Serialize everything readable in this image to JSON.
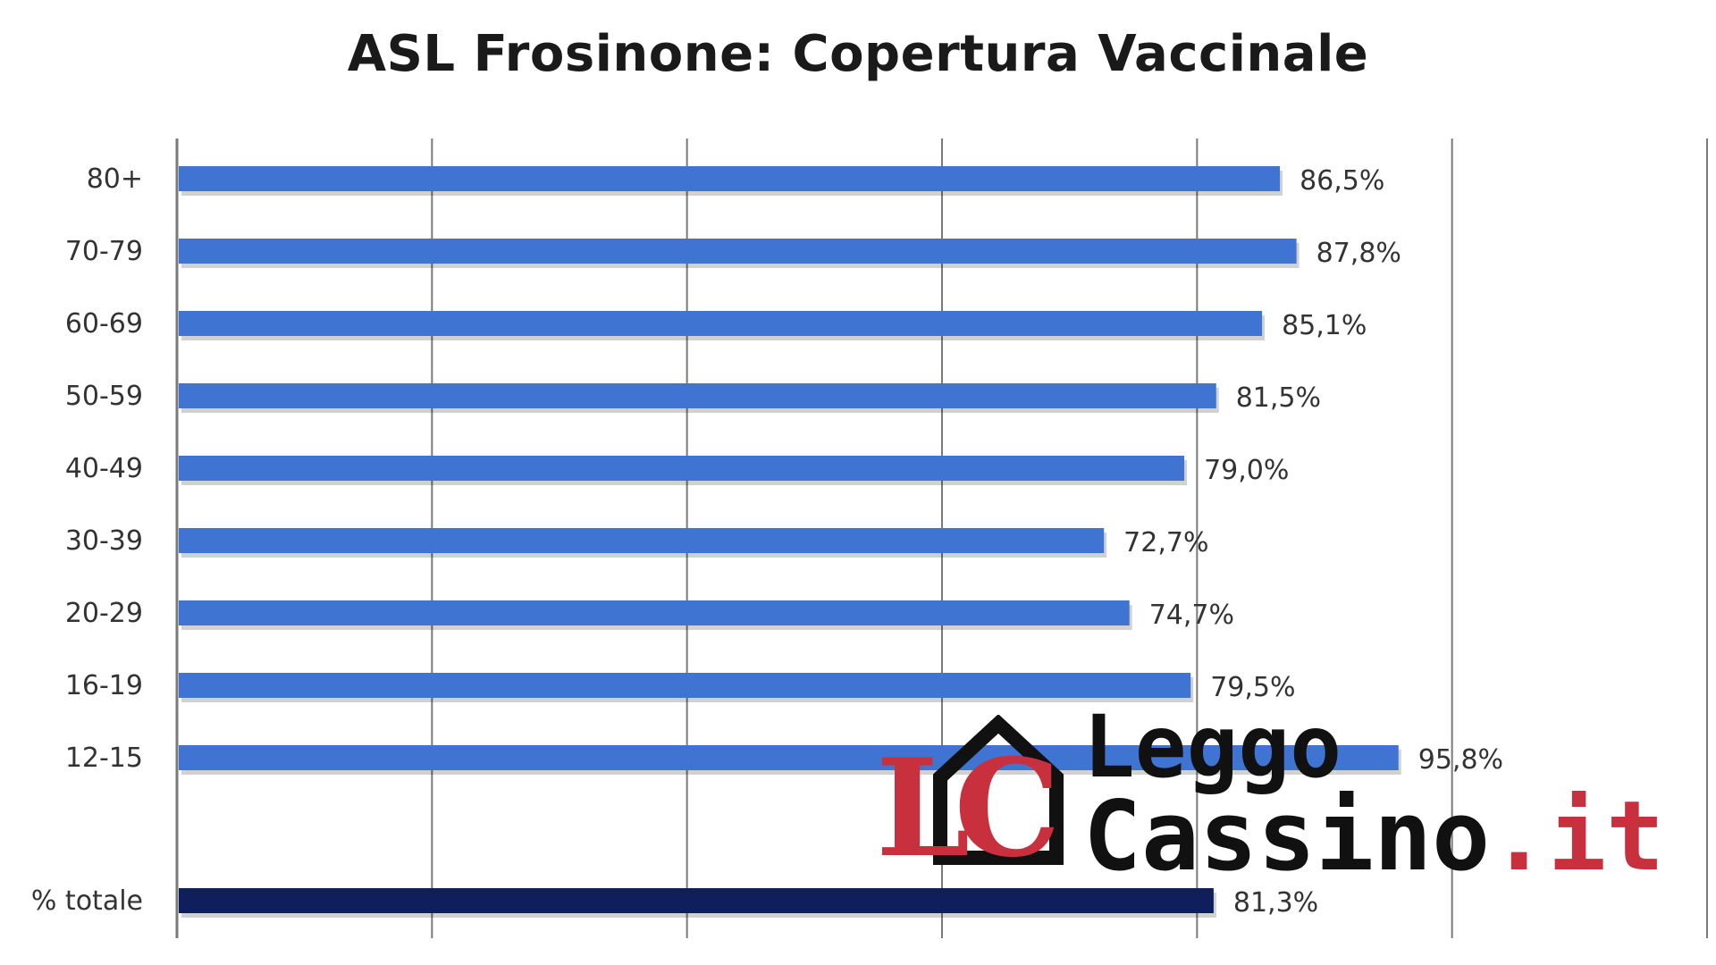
{
  "chart_data": {
    "type": "bar",
    "orientation": "horizontal",
    "title": "ASL Frosinone: Copertura Vaccinale",
    "categories": [
      "80+",
      "70-79",
      "60-69",
      "50-59",
      "40-49",
      "30-39",
      "20-29",
      "16-19",
      "12-15",
      "% totale"
    ],
    "values": [
      86.5,
      87.8,
      85.1,
      81.5,
      79.0,
      72.7,
      74.7,
      79.5,
      95.8,
      81.3
    ],
    "value_labels": [
      "86,5%",
      "87,8%",
      "85,1%",
      "81,5%",
      "79,0%",
      "72,7%",
      "74,7%",
      "79,5%",
      "95,8%",
      "81,3%"
    ],
    "xlim": [
      0,
      120
    ],
    "grid": true,
    "colors": {
      "bar": "#3f74d2",
      "total_bar": "#0e1f5c",
      "grid": "#7a7a7a"
    }
  },
  "watermark": {
    "monogram": "LC",
    "name_line1": "Leggo",
    "name_line2": "Cassino",
    "suffix": ".it",
    "colors": {
      "red": "#c8303e",
      "dark": "#111111"
    }
  }
}
